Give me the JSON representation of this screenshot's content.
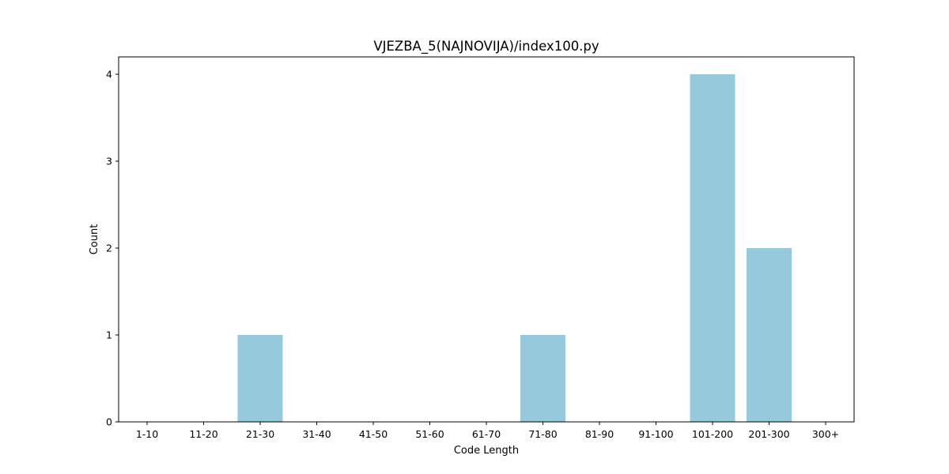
{
  "chart_data": {
    "type": "bar",
    "title": "VJEZBA_5(NAJNOVIJA)/index100.py",
    "xlabel": "Code Length",
    "ylabel": "Count",
    "categories": [
      "1-10",
      "11-20",
      "21-30",
      "31-40",
      "41-50",
      "51-60",
      "61-70",
      "71-80",
      "81-90",
      "91-100",
      "101-200",
      "201-300",
      "300+"
    ],
    "values": [
      0,
      0,
      1,
      0,
      0,
      0,
      0,
      1,
      0,
      0,
      4,
      2,
      0
    ],
    "ylim": [
      0,
      4.2
    ],
    "yticks": [
      "0",
      "1",
      "2",
      "3",
      "4"
    ],
    "bar_color": "#96c9dc",
    "grid": false,
    "legend": "none"
  }
}
